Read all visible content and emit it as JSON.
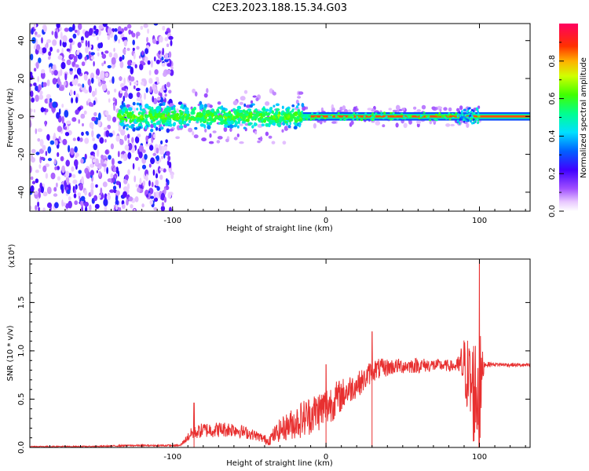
{
  "figure_title": "C2E3.2023.188.15.34.G03",
  "chart_data": [
    {
      "type": "heatmap",
      "title": "C2E3.2023.188.15.34.G03",
      "xlabel": "Height of straight line (km)",
      "ylabel": "Frequency (Hz)",
      "xlim": [
        -193,
        133
      ],
      "ylim": [
        -50,
        49
      ],
      "xticks": [
        -100,
        0,
        100
      ],
      "xtick_labels": [
        "-100",
        "0",
        "100"
      ],
      "yticks": [
        -40,
        -20,
        0,
        20,
        40
      ],
      "ytick_labels": [
        "-40",
        "-20",
        "0",
        "20",
        "40"
      ],
      "grid": false,
      "colorbar": {
        "label": "Normalized spectral amplitude",
        "range": [
          0,
          1
        ],
        "ticks": [
          0.0,
          0.2,
          0.4,
          0.6,
          0.8
        ],
        "tick_labels": [
          "0.0",
          "0.2",
          "0.4",
          "0.6",
          "0.8"
        ],
        "colormap": [
          "#ffffff",
          "#c77dff",
          "#7b00ff",
          "#1a00ff",
          "#00d0ff",
          "#00ff80",
          "#80ff00",
          "#ffd000",
          "#ff4000",
          "#ff0040"
        ]
      },
      "regions": [
        {
          "x_range": [
            -193,
            -100
          ],
          "freq_range": [
            -50,
            49
          ],
          "amplitude": 0.15,
          "pattern": "diffuse noise"
        },
        {
          "x_range": [
            -135,
            -15
          ],
          "freq_range": [
            -8,
            8
          ],
          "amplitude": 0.45,
          "pattern": "broadened line"
        },
        {
          "x_range": [
            -15,
            100
          ],
          "freq_range": [
            -1,
            1
          ],
          "amplitude": 0.85,
          "pattern": "narrow line at 0 Hz"
        },
        {
          "x_range": [
            100,
            133
          ],
          "freq_range": [
            -1,
            1
          ],
          "amplitude": 0.9,
          "pattern": "narrow line at 0 Hz"
        }
      ]
    },
    {
      "type": "line",
      "xlabel": "Height of straight line (km)",
      "ylabel": "SNR (10 * v/v)",
      "y_scale_label": "(x10⁴)",
      "xlim": [
        -193,
        133
      ],
      "ylim": [
        0,
        1.95
      ],
      "xticks": [
        -100,
        0,
        100
      ],
      "xtick_labels": [
        "-100",
        "0",
        "100"
      ],
      "yticks": [
        0.0,
        0.5,
        1.0,
        1.5
      ],
      "ytick_labels": [
        "0.0",
        "0.5",
        "1.0",
        "1.5"
      ],
      "grid": false,
      "series_color": "#e83030",
      "envelope": {
        "x": [
          -193,
          -150,
          -130,
          -95,
          -88,
          -80,
          -60,
          -45,
          -38,
          -30,
          -15,
          0,
          15,
          25,
          30,
          45,
          60,
          75,
          85,
          90,
          95,
          100,
          103,
          110,
          133
        ],
        "mean": [
          0.01,
          0.01,
          0.02,
          0.02,
          0.14,
          0.18,
          0.19,
          0.12,
          0.07,
          0.18,
          0.3,
          0.42,
          0.6,
          0.7,
          0.8,
          0.84,
          0.85,
          0.85,
          0.84,
          0.85,
          0.6,
          0.55,
          0.86,
          0.86,
          0.85
        ],
        "spread": [
          0.005,
          0.006,
          0.008,
          0.01,
          0.06,
          0.08,
          0.08,
          0.05,
          0.05,
          0.12,
          0.2,
          0.22,
          0.15,
          0.12,
          0.12,
          0.08,
          0.08,
          0.06,
          0.06,
          0.3,
          0.55,
          0.7,
          0.03,
          0.02,
          0.02
        ]
      },
      "peaks": [
        {
          "x": -86,
          "y": 0.46
        },
        {
          "x": 0,
          "y": 0.86
        },
        {
          "x": 30,
          "y": 1.2
        },
        {
          "x": 100,
          "y": 1.95
        }
      ]
    }
  ]
}
